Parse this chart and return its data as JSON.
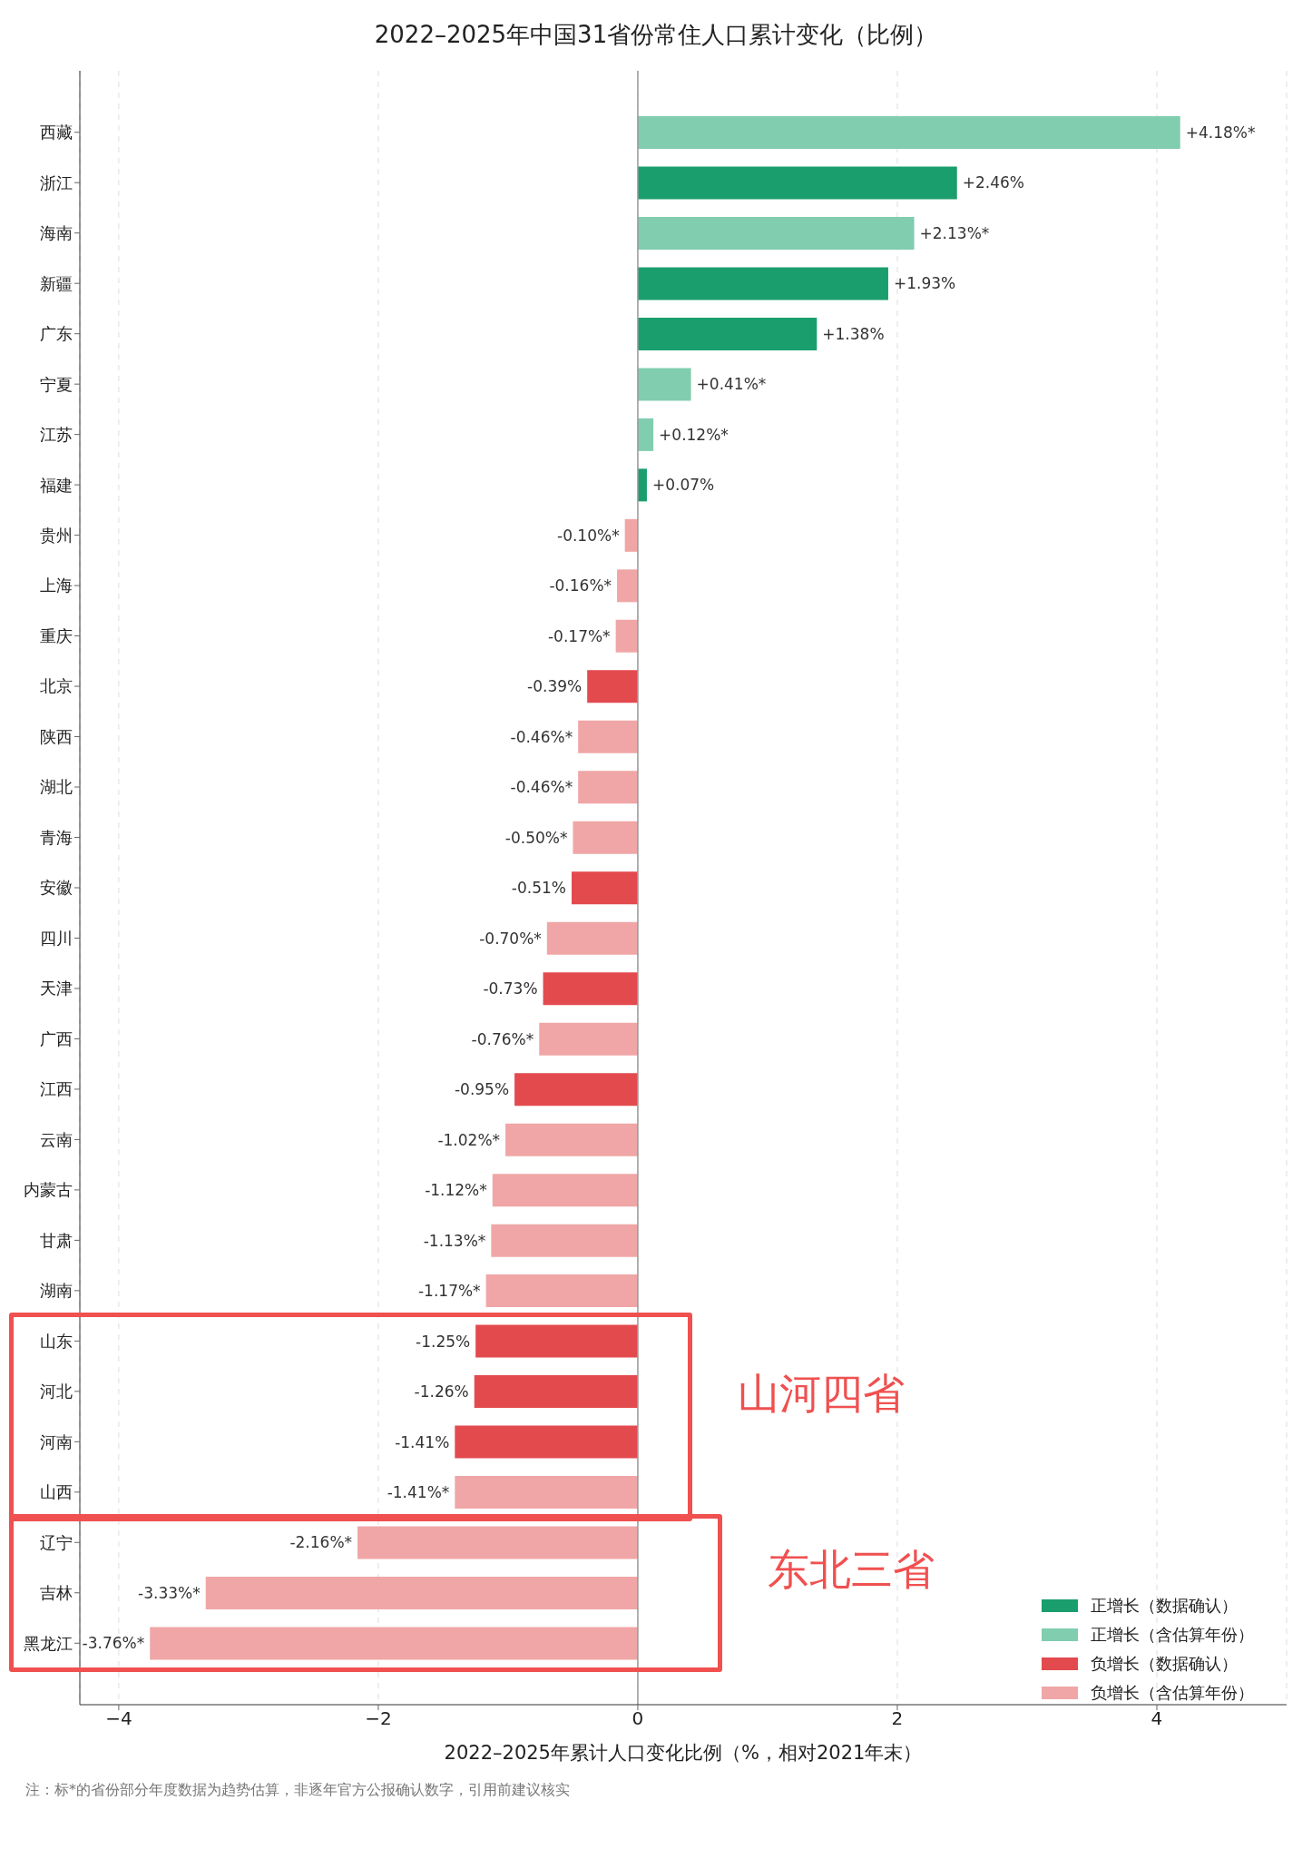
{
  "chart_data": {
    "type": "bar",
    "orientation": "horizontal",
    "stacked": true,
    "title": "2022–2025年中国31省份常住人口累计变化（比例）",
    "xlabel": "2022–2025年累计人口变化比例（%，相对2021年末）",
    "categories": [
      "西藏",
      "浙江",
      "海南",
      "新疆",
      "广东",
      "宁夏",
      "江苏",
      "福建",
      "贵州",
      "上海",
      "重庆",
      "北京",
      "陕西",
      "湖北",
      "青海",
      "安徽",
      "四川",
      "天津",
      "广西",
      "江西",
      "云南",
      "内蒙古",
      "甘肃",
      "湖南",
      "山东",
      "河北",
      "河南",
      "山西",
      "辽宁",
      "吉林",
      "黑龙江"
    ],
    "series": [
      {
        "name": "正增长（数据确认）",
        "color": "#1a9e6e",
        "values": [
          null,
          2.46,
          null,
          1.93,
          1.38,
          null,
          null,
          0.07,
          null,
          null,
          null,
          null,
          null,
          null,
          null,
          null,
          null,
          null,
          null,
          null,
          null,
          null,
          null,
          null,
          null,
          null,
          null,
          null,
          null,
          null,
          null
        ],
        "value_labels": [
          null,
          "+2.46%",
          null,
          "+1.93%",
          "+1.38%",
          null,
          null,
          "+0.07%",
          null,
          null,
          null,
          null,
          null,
          null,
          null,
          null,
          null,
          null,
          null,
          null,
          null,
          null,
          null,
          null,
          null,
          null,
          null,
          null,
          null,
          null,
          null
        ]
      },
      {
        "name": "正增长（含估算年份）",
        "color": "#80cdb0",
        "values": [
          4.18,
          null,
          2.13,
          null,
          null,
          0.41,
          0.12,
          null,
          null,
          null,
          null,
          null,
          null,
          null,
          null,
          null,
          null,
          null,
          null,
          null,
          null,
          null,
          null,
          null,
          null,
          null,
          null,
          null,
          null,
          null,
          null
        ],
        "value_labels": [
          "+4.18%*",
          null,
          "+2.13%*",
          null,
          null,
          "+0.41%*",
          "+0.12%*",
          null,
          null,
          null,
          null,
          null,
          null,
          null,
          null,
          null,
          null,
          null,
          null,
          null,
          null,
          null,
          null,
          null,
          null,
          null,
          null,
          null,
          null,
          null,
          null
        ]
      },
      {
        "name": "负增长（数据确认）",
        "color": "#e34a4e",
        "values": [
          null,
          null,
          null,
          null,
          null,
          null,
          null,
          null,
          null,
          null,
          null,
          -0.39,
          null,
          null,
          null,
          -0.51,
          null,
          -0.73,
          null,
          -0.95,
          null,
          null,
          null,
          null,
          -1.25,
          -1.26,
          -1.41,
          null,
          null,
          null,
          null
        ],
        "value_labels": [
          null,
          null,
          null,
          null,
          null,
          null,
          null,
          null,
          null,
          null,
          null,
          "-0.39%",
          null,
          null,
          null,
          "-0.51%",
          null,
          "-0.73%",
          null,
          "-0.95%",
          null,
          null,
          null,
          null,
          "-1.25%",
          "-1.26%",
          "-1.41%",
          null,
          null,
          null,
          null
        ]
      },
      {
        "name": "负增长（含估算年份）",
        "color": "#f0a6a6",
        "values": [
          null,
          null,
          null,
          null,
          null,
          null,
          null,
          null,
          -0.1,
          -0.16,
          -0.17,
          null,
          -0.46,
          -0.46,
          -0.5,
          null,
          -0.7,
          null,
          -0.76,
          null,
          -1.02,
          -1.12,
          -1.13,
          -1.17,
          null,
          null,
          null,
          -1.41,
          -2.16,
          -3.33,
          -3.76
        ],
        "value_labels": [
          null,
          null,
          null,
          null,
          null,
          null,
          null,
          null,
          "-0.10%*",
          "-0.16%*",
          "-0.17%*",
          null,
          "-0.46%*",
          "-0.46%*",
          "-0.50%*",
          null,
          "-0.70%*",
          null,
          "-0.76%*",
          null,
          "-1.02%*",
          "-1.12%*",
          "-1.13%*",
          "-1.17%*",
          null,
          null,
          null,
          "-1.41%*",
          "-2.16%*",
          "-3.33%*",
          "-3.76%*"
        ]
      }
    ],
    "xlim": [
      -4.3,
      5
    ],
    "xticks": [
      -4,
      -2,
      0,
      2,
      4
    ],
    "grid": "x",
    "legend": "bottom right",
    "ref_lines": [
      {
        "axis": "x",
        "value": 0,
        "color": "#999999"
      }
    ],
    "annotations": [
      "山河四省",
      "东北三省",
      "注：标*的省份部分年度数据为趋势估算，非逐年官方公报确认数字，引用前建议核实"
    ]
  }
}
